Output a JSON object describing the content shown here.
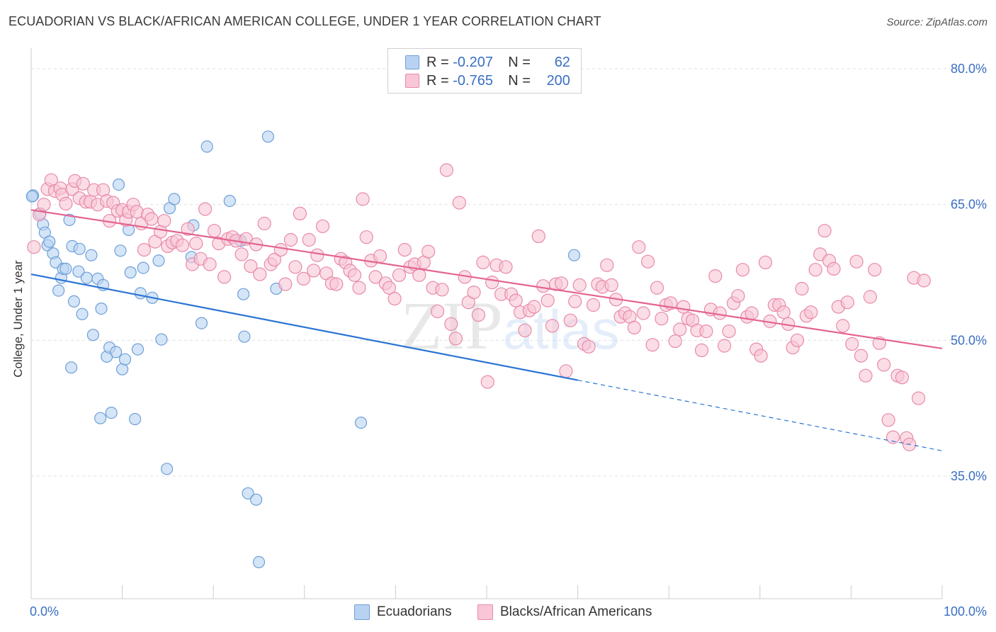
{
  "title": "ECUADORIAN VS BLACK/AFRICAN AMERICAN COLLEGE, UNDER 1 YEAR CORRELATION CHART",
  "source": "Source: ZipAtlas.com",
  "watermark": "ZIPatlas",
  "colors": {
    "blue_fill": "#b8d3f2",
    "blue_stroke": "#6f9fd8",
    "blue_line": "#2a74d4",
    "pink_fill": "#f8c6d6",
    "pink_stroke": "#e88aa9",
    "pink_line": "#e4648f",
    "tick_label": "#3a6fc4",
    "grid": "#e0e0e0"
  },
  "legend": {
    "rows": [
      {
        "r_label": "R =",
        "r_value": "-0.207",
        "n_label": "N =",
        "n_value": "62"
      },
      {
        "r_label": "R =",
        "r_value": "-0.765",
        "n_label": "N =",
        "n_value": "200"
      }
    ]
  },
  "bottom_legend": [
    "Ecuadorians",
    "Blacks/African Americans"
  ],
  "chart_data": {
    "type": "scatter",
    "title": "ECUADORIAN VS BLACK/AFRICAN AMERICAN COLLEGE, UNDER 1 YEAR CORRELATION CHART",
    "xlabel": "",
    "ylabel": "College, Under 1 year",
    "xlim": [
      0,
      100
    ],
    "ylim": [
      20,
      85
    ],
    "x_tick_labels": [
      "0.0%",
      "100.0%"
    ],
    "y_ticks": [
      35,
      50,
      65,
      80
    ],
    "y_tick_labels": [
      "35.0%",
      "50.0%",
      "65.0%",
      "80.0%"
    ],
    "grid": true,
    "legend_placement": "top-center",
    "series": [
      {
        "name": "Ecuadorians",
        "color": "#b8d3f2",
        "trend": {
          "x": [
            0,
            60
          ],
          "y": [
            57.3,
            45.6
          ],
          "dashed_to": [
            100,
            37.8
          ]
        },
        "points": [
          [
            0.2,
            66.0
          ],
          [
            1.0,
            64.0
          ],
          [
            1.3,
            62.8
          ],
          [
            1.5,
            61.9
          ],
          [
            1.8,
            60.5
          ],
          [
            2.0,
            60.9
          ],
          [
            2.4,
            59.6
          ],
          [
            2.7,
            58.6
          ],
          [
            3.0,
            55.5
          ],
          [
            3.3,
            56.9
          ],
          [
            3.5,
            57.9
          ],
          [
            3.8,
            57.9
          ],
          [
            4.2,
            63.3
          ],
          [
            4.4,
            47.0
          ],
          [
            4.5,
            60.4
          ],
          [
            4.7,
            54.3
          ],
          [
            5.2,
            57.6
          ],
          [
            5.3,
            60.1
          ],
          [
            5.6,
            52.9
          ],
          [
            6.1,
            56.9
          ],
          [
            6.6,
            59.4
          ],
          [
            6.8,
            50.6
          ],
          [
            7.3,
            56.8
          ],
          [
            7.6,
            41.4
          ],
          [
            7.7,
            53.5
          ],
          [
            7.9,
            56.1
          ],
          [
            8.3,
            48.2
          ],
          [
            8.6,
            49.2
          ],
          [
            8.8,
            42.0
          ],
          [
            9.3,
            48.7
          ],
          [
            9.6,
            67.2
          ],
          [
            9.8,
            59.9
          ],
          [
            10.0,
            46.8
          ],
          [
            10.3,
            47.9
          ],
          [
            10.7,
            62.2
          ],
          [
            10.9,
            57.5
          ],
          [
            11.4,
            41.3
          ],
          [
            11.7,
            49.0
          ],
          [
            12.0,
            55.2
          ],
          [
            12.3,
            58.0
          ],
          [
            13.3,
            54.7
          ],
          [
            14.0,
            58.8
          ],
          [
            14.3,
            50.1
          ],
          [
            14.9,
            35.8
          ],
          [
            15.2,
            64.6
          ],
          [
            15.7,
            65.6
          ],
          [
            17.6,
            59.2
          ],
          [
            17.8,
            62.7
          ],
          [
            18.7,
            51.9
          ],
          [
            19.3,
            71.4
          ],
          [
            21.8,
            65.4
          ],
          [
            23.0,
            61.0
          ],
          [
            23.3,
            55.1
          ],
          [
            23.4,
            50.4
          ],
          [
            23.8,
            33.1
          ],
          [
            24.7,
            32.4
          ],
          [
            25.0,
            25.5
          ],
          [
            26.0,
            72.5
          ],
          [
            26.9,
            55.7
          ],
          [
            36.2,
            40.9
          ],
          [
            59.6,
            59.4
          ],
          [
            0.1,
            65.9
          ]
        ]
      },
      {
        "name": "Blacks/African Americans",
        "color": "#f8c6d6",
        "trend": {
          "x": [
            0,
            100
          ],
          "y": [
            64.4,
            49.1
          ]
        },
        "points": [
          [
            0.3,
            60.3
          ],
          [
            0.9,
            63.9
          ],
          [
            1.4,
            65.0
          ],
          [
            1.8,
            66.7
          ],
          [
            2.2,
            67.7
          ],
          [
            2.6,
            66.5
          ],
          [
            3.2,
            66.8
          ],
          [
            3.4,
            66.1
          ],
          [
            3.8,
            65.1
          ],
          [
            4.5,
            66.7
          ],
          [
            4.8,
            67.6
          ],
          [
            5.3,
            65.7
          ],
          [
            5.7,
            67.3
          ],
          [
            6.0,
            65.3
          ],
          [
            6.5,
            65.3
          ],
          [
            6.9,
            66.6
          ],
          [
            7.3,
            65.0
          ],
          [
            7.9,
            66.6
          ],
          [
            8.3,
            65.4
          ],
          [
            8.6,
            63.2
          ],
          [
            9.0,
            65.2
          ],
          [
            9.5,
            64.3
          ],
          [
            10.0,
            64.4
          ],
          [
            10.4,
            63.3
          ],
          [
            10.7,
            64.2
          ],
          [
            11.2,
            65.0
          ],
          [
            11.6,
            64.2
          ],
          [
            12.1,
            62.9
          ],
          [
            12.4,
            60.0
          ],
          [
            12.8,
            63.9
          ],
          [
            13.2,
            63.4
          ],
          [
            13.6,
            60.9
          ],
          [
            14.2,
            62.0
          ],
          [
            14.6,
            63.2
          ],
          [
            15.0,
            60.4
          ],
          [
            15.5,
            60.8
          ],
          [
            16.0,
            61.0
          ],
          [
            16.6,
            60.5
          ],
          [
            17.2,
            62.3
          ],
          [
            17.7,
            58.4
          ],
          [
            18.1,
            60.7
          ],
          [
            18.6,
            59.0
          ],
          [
            19.1,
            64.5
          ],
          [
            19.6,
            58.4
          ],
          [
            20.1,
            62.1
          ],
          [
            20.6,
            60.7
          ],
          [
            21.2,
            57.0
          ],
          [
            21.6,
            61.2
          ],
          [
            22.1,
            61.4
          ],
          [
            22.5,
            61.0
          ],
          [
            23.1,
            59.5
          ],
          [
            23.6,
            61.2
          ],
          [
            24.1,
            58.2
          ],
          [
            24.7,
            60.6
          ],
          [
            25.1,
            57.3
          ],
          [
            25.6,
            62.9
          ],
          [
            26.3,
            58.4
          ],
          [
            26.7,
            58.9
          ],
          [
            27.4,
            60.0
          ],
          [
            27.9,
            56.2
          ],
          [
            28.5,
            61.1
          ],
          [
            29.0,
            58.1
          ],
          [
            29.5,
            64.0
          ],
          [
            29.9,
            56.8
          ],
          [
            30.5,
            61.1
          ],
          [
            31.0,
            57.7
          ],
          [
            31.4,
            59.4
          ],
          [
            32.0,
            62.6
          ],
          [
            32.4,
            57.4
          ],
          [
            33.0,
            56.3
          ],
          [
            33.5,
            56.2
          ],
          [
            34.0,
            59.0
          ],
          [
            34.5,
            58.6
          ],
          [
            35.0,
            57.7
          ],
          [
            35.5,
            57.2
          ],
          [
            36.0,
            55.8
          ],
          [
            36.4,
            65.6
          ],
          [
            36.8,
            61.4
          ],
          [
            37.3,
            58.8
          ],
          [
            37.8,
            57.0
          ],
          [
            38.3,
            59.3
          ],
          [
            38.9,
            56.3
          ],
          [
            39.3,
            55.8
          ],
          [
            39.9,
            54.6
          ],
          [
            40.4,
            57.2
          ],
          [
            41.0,
            60.0
          ],
          [
            41.6,
            58.1
          ],
          [
            42.1,
            58.4
          ],
          [
            42.6,
            57.2
          ],
          [
            43.1,
            58.6
          ],
          [
            43.6,
            59.8
          ],
          [
            44.1,
            55.8
          ],
          [
            44.6,
            53.2
          ],
          [
            45.1,
            55.6
          ],
          [
            45.6,
            68.8
          ],
          [
            46.1,
            51.8
          ],
          [
            46.6,
            50.2
          ],
          [
            47.0,
            65.2
          ],
          [
            47.6,
            57.0
          ],
          [
            48.0,
            54.2
          ],
          [
            48.6,
            55.3
          ],
          [
            49.1,
            52.8
          ],
          [
            49.6,
            58.6
          ],
          [
            50.1,
            45.4
          ],
          [
            50.6,
            56.4
          ],
          [
            51.1,
            58.3
          ],
          [
            51.6,
            55.1
          ],
          [
            52.1,
            58.1
          ],
          [
            52.7,
            55.1
          ],
          [
            53.2,
            54.4
          ],
          [
            53.7,
            53.1
          ],
          [
            54.2,
            51.1
          ],
          [
            54.7,
            53.3
          ],
          [
            55.2,
            53.7
          ],
          [
            55.7,
            61.5
          ],
          [
            56.2,
            56.0
          ],
          [
            56.7,
            54.4
          ],
          [
            57.2,
            51.6
          ],
          [
            57.6,
            56.2
          ],
          [
            58.2,
            56.3
          ],
          [
            58.7,
            46.6
          ],
          [
            59.2,
            52.2
          ],
          [
            59.7,
            54.3
          ],
          [
            60.2,
            56.1
          ],
          [
            60.7,
            49.6
          ],
          [
            61.2,
            49.3
          ],
          [
            61.7,
            53.9
          ],
          [
            62.2,
            56.2
          ],
          [
            62.7,
            55.9
          ],
          [
            63.2,
            58.3
          ],
          [
            63.7,
            56.1
          ],
          [
            64.2,
            54.5
          ],
          [
            64.7,
            52.6
          ],
          [
            65.2,
            53.0
          ],
          [
            65.7,
            52.6
          ],
          [
            66.2,
            51.4
          ],
          [
            66.7,
            60.3
          ],
          [
            67.2,
            53.0
          ],
          [
            67.7,
            58.7
          ],
          [
            68.2,
            49.5
          ],
          [
            68.7,
            55.8
          ],
          [
            69.2,
            52.4
          ],
          [
            69.7,
            53.9
          ],
          [
            70.2,
            54.1
          ],
          [
            70.7,
            49.9
          ],
          [
            71.2,
            51.2
          ],
          [
            71.6,
            53.7
          ],
          [
            72.1,
            52.4
          ],
          [
            72.6,
            52.2
          ],
          [
            73.1,
            51.1
          ],
          [
            73.6,
            48.9
          ],
          [
            74.1,
            51.0
          ],
          [
            74.6,
            53.4
          ],
          [
            75.1,
            57.1
          ],
          [
            75.6,
            53.0
          ],
          [
            76.1,
            49.4
          ],
          [
            76.6,
            51.0
          ],
          [
            77.1,
            54.1
          ],
          [
            77.6,
            54.9
          ],
          [
            78.1,
            57.8
          ],
          [
            78.6,
            52.6
          ],
          [
            79.1,
            53.0
          ],
          [
            79.6,
            49.0
          ],
          [
            80.1,
            48.3
          ],
          [
            80.6,
            58.6
          ],
          [
            81.1,
            52.1
          ],
          [
            81.6,
            53.9
          ],
          [
            82.1,
            53.9
          ],
          [
            82.6,
            53.1
          ],
          [
            83.1,
            51.8
          ],
          [
            83.6,
            49.2
          ],
          [
            84.1,
            50.0
          ],
          [
            84.6,
            55.7
          ],
          [
            85.1,
            52.7
          ],
          [
            85.6,
            53.1
          ],
          [
            86.1,
            57.8
          ],
          [
            86.6,
            59.5
          ],
          [
            87.1,
            62.1
          ],
          [
            87.6,
            58.8
          ],
          [
            88.1,
            57.9
          ],
          [
            88.6,
            53.7
          ],
          [
            89.1,
            51.6
          ],
          [
            89.6,
            54.2
          ],
          [
            90.1,
            49.6
          ],
          [
            90.6,
            58.7
          ],
          [
            91.1,
            48.3
          ],
          [
            91.6,
            46.1
          ],
          [
            92.1,
            54.8
          ],
          [
            92.6,
            57.8
          ],
          [
            93.1,
            49.7
          ],
          [
            93.6,
            47.3
          ],
          [
            94.1,
            41.2
          ],
          [
            94.6,
            39.3
          ],
          [
            95.1,
            46.1
          ],
          [
            95.6,
            45.9
          ],
          [
            96.1,
            39.2
          ],
          [
            96.4,
            38.5
          ],
          [
            96.9,
            56.9
          ],
          [
            97.4,
            43.6
          ],
          [
            98.0,
            56.6
          ]
        ]
      }
    ]
  }
}
